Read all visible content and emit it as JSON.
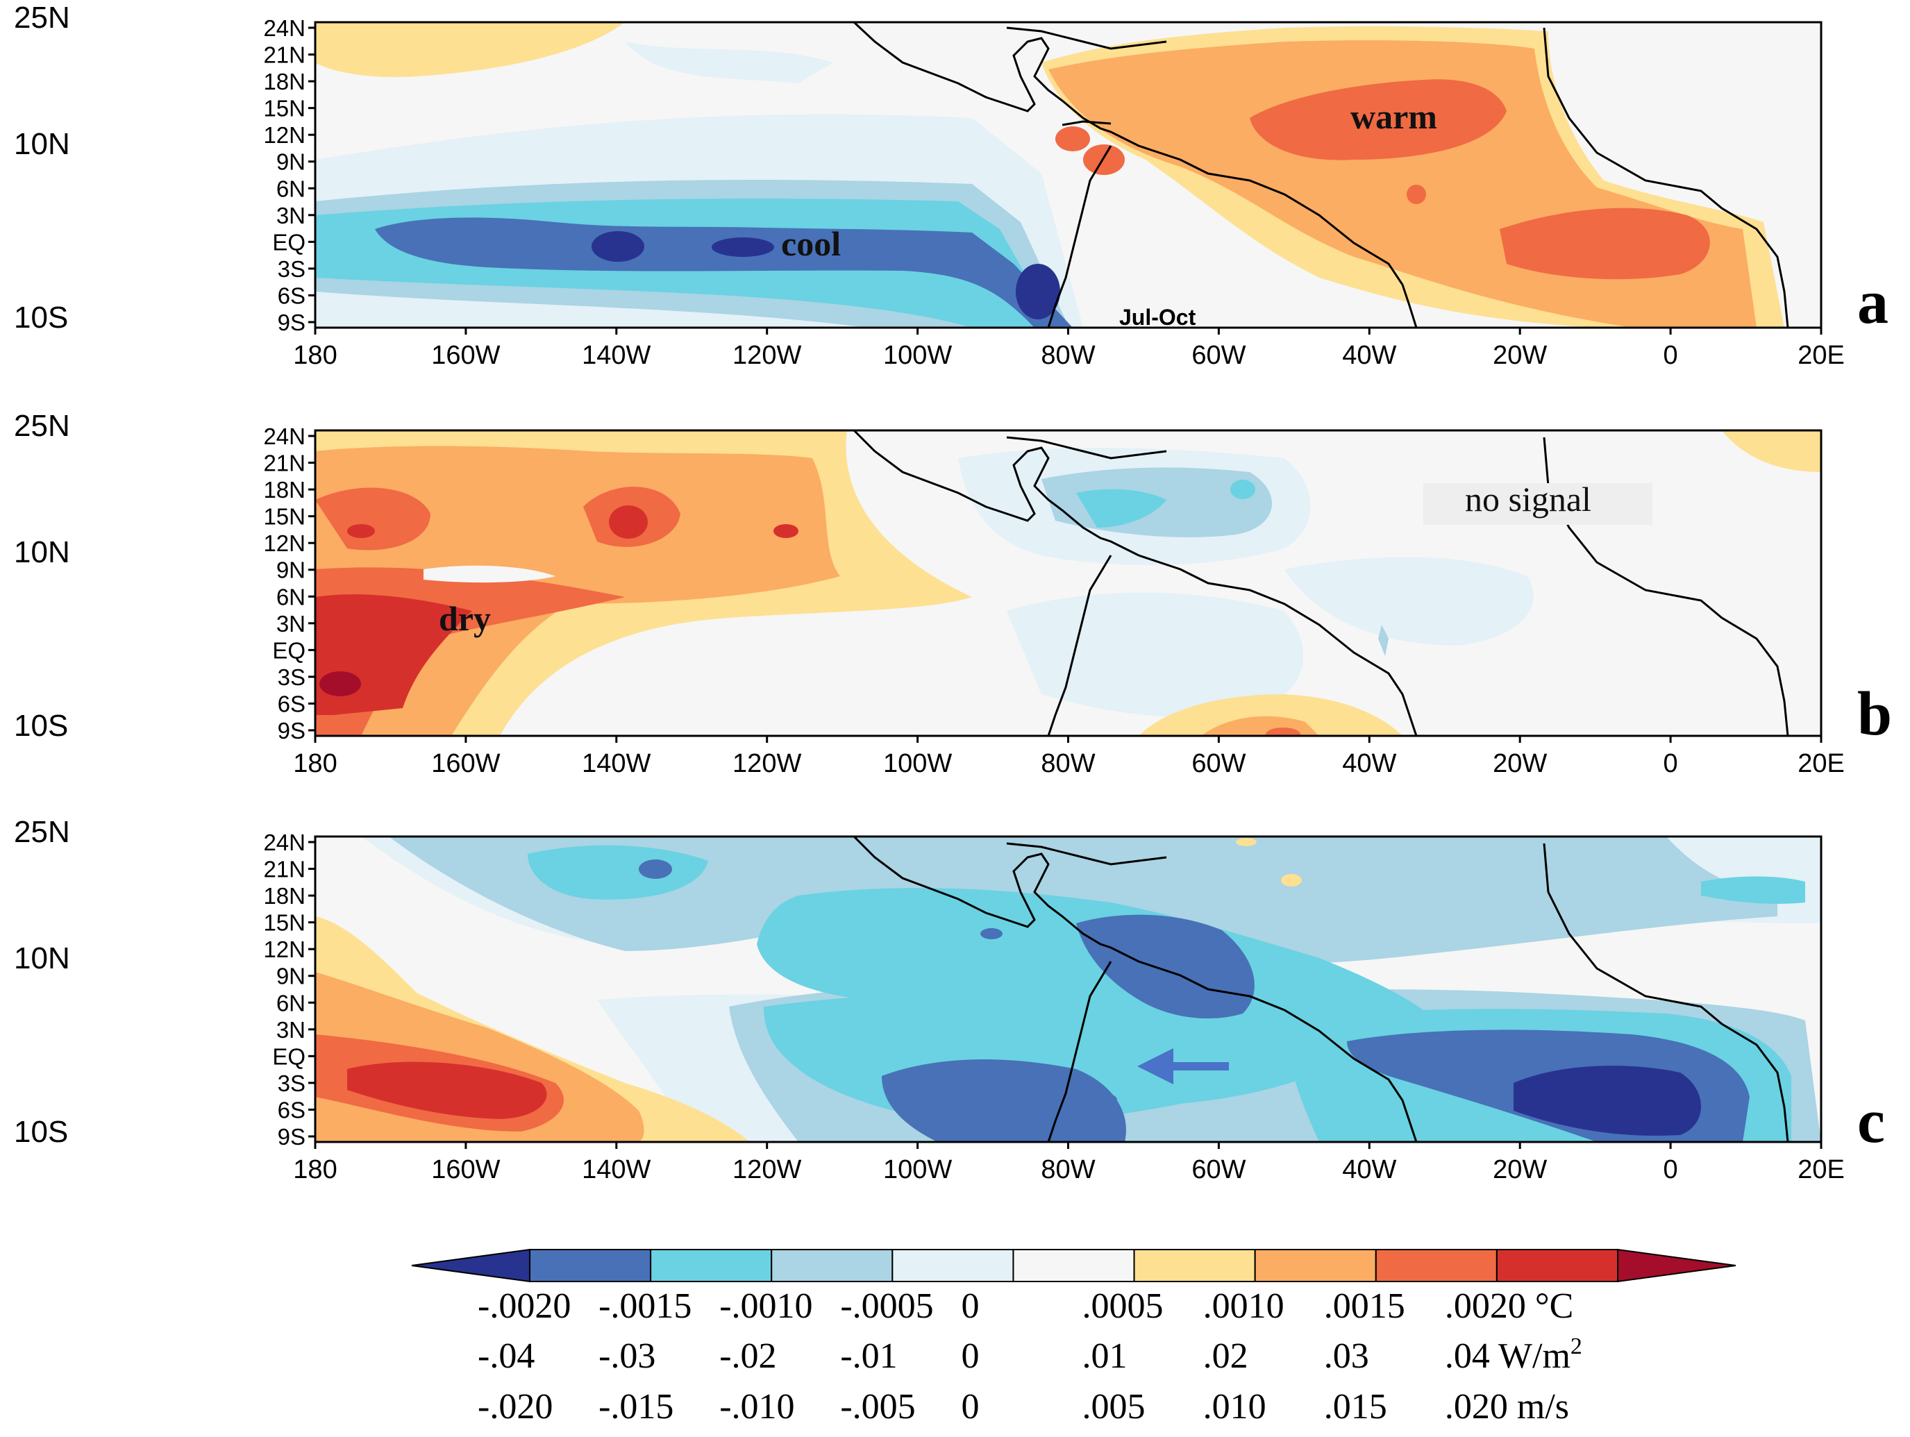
{
  "figure": {
    "outer_lat_labels": [
      "25N",
      "10N",
      "10S"
    ],
    "lat_ticks": [
      "24N",
      "21N",
      "18N",
      "15N",
      "12N",
      "9N",
      "6N",
      "3N",
      "EQ",
      "3S",
      "6S",
      "9S"
    ],
    "lon_ticks": [
      "180",
      "160W",
      "140W",
      "120W",
      "100W",
      "80W",
      "60W",
      "40W",
      "20W",
      "0",
      "20E"
    ]
  },
  "panels": [
    {
      "letter": "a",
      "annotations": [
        "cool",
        "warm",
        "Jul-Oct"
      ]
    },
    {
      "letter": "b",
      "annotations": [
        "dry",
        "no signal"
      ]
    },
    {
      "letter": "c",
      "annotations": [],
      "arrow": "westward-arrow"
    }
  ],
  "colorbar": {
    "colors": [
      "#28338f",
      "#4871b7",
      "#6ad2e2",
      "#abd4e4",
      "#e4f1f7",
      "#f6f6f6",
      "#fde092",
      "#fbad63",
      "#f06a44",
      "#d6302c",
      "#a40e2a"
    ],
    "rows": [
      {
        "values": [
          "-.0020",
          "-.0015",
          "-.0010",
          "-.0005",
          "0",
          ".0005",
          ".0010",
          ".0015",
          ".0020"
        ],
        "unit": "°C"
      },
      {
        "values": [
          "-.04",
          "-.03",
          "-.02",
          "-.01",
          "0",
          ".01",
          ".02",
          ".03",
          ".04"
        ],
        "unit": "W/m",
        "unit_sup": "2"
      },
      {
        "values": [
          "-.020",
          "-.015",
          "-.010",
          "-.005",
          "0",
          ".005",
          ".010",
          ".015",
          ".020"
        ],
        "unit": "m/s"
      }
    ]
  },
  "palette": {
    "blue_deep": "#28338f",
    "blue_dark": "#4871b7",
    "blue_cyan": "#6ad2e2",
    "blue_light": "#abd4e4",
    "blue_pale": "#e4f1f7",
    "neutral": "#f6f6f6",
    "orange_pale": "#fde092",
    "orange_light": "#fbad63",
    "orange_mid": "#f06a44",
    "red": "#d6302c",
    "red_deep": "#a40e2a",
    "arrow": "#4a72c8"
  }
}
